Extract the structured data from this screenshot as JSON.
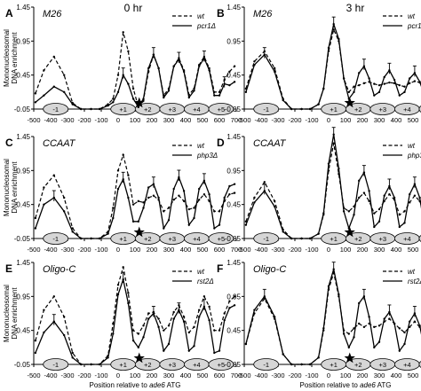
{
  "header": {
    "time_left": "0 hr",
    "time_right": "3 hr"
  },
  "shared": {
    "ylabel_line1": "Mononucleosomal",
    "ylabel_line2": "DNA enrichment",
    "xlabel_prefix": "Position relative to ",
    "xlabel_gene": "ade6",
    "xlabel_suffix": " ATG",
    "xticks": [
      -500,
      -400,
      -300,
      -200,
      -100,
      0,
      100,
      200,
      300,
      400,
      500,
      600,
      700
    ],
    "xtick_labels": [
      "-500",
      "-400",
      "-300",
      "-200",
      "-100",
      "0",
      "100",
      "200",
      "300",
      "400",
      "500",
      "600",
      "700"
    ],
    "yticks": [
      -0.05,
      0.45,
      0.95,
      1.45
    ],
    "ytick_labels": [
      "-0.05",
      "0.45",
      "0.95",
      "1.45"
    ],
    "xlim": [
      -500,
      700
    ],
    "ylim": [
      -0.05,
      1.45
    ],
    "nucleosomes": [
      {
        "label": "-1",
        "center": -370
      },
      {
        "label": "+1",
        "center": 30
      },
      {
        "label": "+2",
        "center": 175
      },
      {
        "label": "+3",
        "center": 320
      },
      {
        "label": "+4",
        "center": 465
      },
      {
        "label": "+5",
        "center": 610
      }
    ],
    "star_x": 125
  },
  "chart_data": [
    {
      "type": "line",
      "panel_letter": "A",
      "site": "M26",
      "legend": [
        "wt",
        "pcr1Δ"
      ],
      "series": [
        {
          "name": "wt",
          "style": "dashed",
          "x": [
            -490,
            -440,
            -380,
            -320,
            -270,
            -220,
            -160,
            -110,
            -60,
            -30,
            0,
            30,
            60,
            90,
            120,
            150,
            180,
            210,
            240,
            270,
            300,
            330,
            360,
            390,
            420,
            450,
            480,
            510,
            540,
            570,
            600,
            630,
            660,
            690
          ],
          "y": [
            0.18,
            0.52,
            0.72,
            0.45,
            0.04,
            -0.05,
            -0.05,
            -0.05,
            0.02,
            0.1,
            0.45,
            1.08,
            0.8,
            0.25,
            -0.02,
            0.08,
            0.5,
            0.75,
            0.55,
            0.15,
            0.25,
            0.58,
            0.7,
            0.52,
            0.16,
            0.25,
            0.6,
            0.72,
            0.55,
            0.2,
            0.2,
            0.38,
            0.5,
            0.58
          ]
        },
        {
          "name": "pcr1Δ",
          "style": "solid",
          "x": [
            -490,
            -440,
            -380,
            -320,
            -270,
            -220,
            -160,
            -110,
            -60,
            -30,
            0,
            30,
            60,
            90,
            120,
            150,
            180,
            210,
            240,
            270,
            300,
            330,
            360,
            390,
            420,
            450,
            480,
            510,
            540,
            570,
            600,
            630,
            660,
            690
          ],
          "y": [
            0.05,
            0.15,
            0.28,
            0.2,
            0.02,
            -0.05,
            -0.05,
            -0.05,
            0.0,
            0.05,
            0.2,
            0.45,
            0.32,
            0.1,
            -0.02,
            0.1,
            0.55,
            0.75,
            0.55,
            0.12,
            0.22,
            0.58,
            0.68,
            0.5,
            0.12,
            0.22,
            0.58,
            0.7,
            0.52,
            0.15,
            0.15,
            0.32,
            0.3,
            0.35
          ]
        }
      ]
    },
    {
      "type": "line",
      "panel_letter": "B",
      "site": "M26",
      "legend": [
        "wt",
        "pcr1Δ"
      ],
      "series": [
        {
          "name": "wt",
          "style": "dashed",
          "x": [
            -490,
            -440,
            -380,
            -320,
            -270,
            -220,
            -160,
            -110,
            -60,
            -30,
            0,
            30,
            60,
            90,
            120,
            150,
            180,
            210,
            240,
            270,
            300,
            330,
            360,
            390,
            420,
            450,
            480,
            510,
            540,
            570,
            600,
            630,
            660,
            690
          ],
          "y": [
            0.25,
            0.65,
            0.8,
            0.55,
            0.1,
            -0.05,
            -0.05,
            -0.05,
            0.02,
            0.25,
            0.8,
            1.12,
            0.95,
            0.4,
            0.2,
            0.28,
            0.3,
            0.33,
            0.35,
            0.32,
            0.3,
            0.32,
            0.34,
            0.33,
            0.3,
            0.28,
            0.33,
            0.36,
            0.34,
            0.3,
            0.28,
            0.3,
            0.26,
            0.25
          ]
        },
        {
          "name": "pcr1Δ",
          "style": "solid",
          "x": [
            -490,
            -440,
            -380,
            -320,
            -270,
            -220,
            -160,
            -110,
            -60,
            -30,
            0,
            30,
            60,
            90,
            120,
            150,
            180,
            210,
            240,
            270,
            300,
            330,
            360,
            390,
            420,
            450,
            480,
            510,
            540,
            570,
            600,
            630,
            660,
            690
          ],
          "y": [
            0.2,
            0.6,
            0.75,
            0.5,
            0.08,
            -0.05,
            -0.05,
            -0.05,
            0.02,
            0.25,
            0.85,
            1.2,
            0.98,
            0.4,
            0.1,
            0.2,
            0.48,
            0.58,
            0.4,
            0.15,
            0.2,
            0.42,
            0.52,
            0.38,
            0.15,
            0.2,
            0.4,
            0.48,
            0.35,
            0.15,
            0.15,
            0.32,
            0.4,
            0.5
          ]
        }
      ]
    },
    {
      "type": "line",
      "panel_letter": "C",
      "site": "CCAAT",
      "legend": [
        "wt",
        "php3Δ"
      ],
      "series": [
        {
          "name": "wt",
          "style": "dashed",
          "x": [
            -490,
            -440,
            -380,
            -320,
            -270,
            -220,
            -160,
            -110,
            -60,
            -30,
            0,
            30,
            60,
            90,
            120,
            150,
            180,
            210,
            240,
            270,
            300,
            330,
            360,
            390,
            420,
            450,
            480,
            510,
            540,
            570,
            600,
            630,
            660,
            690
          ],
          "y": [
            0.25,
            0.7,
            0.88,
            0.55,
            0.1,
            -0.05,
            -0.05,
            -0.05,
            0.05,
            0.4,
            0.95,
            1.18,
            0.88,
            0.45,
            0.5,
            0.48,
            0.55,
            0.58,
            0.52,
            0.35,
            0.4,
            0.52,
            0.58,
            0.5,
            0.38,
            0.4,
            0.52,
            0.6,
            0.5,
            0.35,
            0.35,
            0.5,
            0.6,
            0.62
          ]
        },
        {
          "name": "php3Δ",
          "style": "solid",
          "x": [
            -490,
            -440,
            -380,
            -320,
            -270,
            -220,
            -160,
            -110,
            -60,
            -30,
            0,
            30,
            60,
            90,
            120,
            150,
            180,
            210,
            240,
            270,
            300,
            330,
            360,
            390,
            420,
            450,
            480,
            510,
            540,
            570,
            600,
            630,
            660,
            690
          ],
          "y": [
            0.1,
            0.45,
            0.55,
            0.35,
            0.05,
            -0.05,
            -0.05,
            -0.05,
            0.02,
            0.25,
            0.68,
            0.82,
            0.55,
            0.2,
            0.2,
            0.4,
            0.7,
            0.75,
            0.55,
            0.1,
            0.22,
            0.68,
            0.85,
            0.65,
            0.15,
            0.25,
            0.68,
            0.8,
            0.6,
            0.1,
            0.15,
            0.55,
            0.72,
            0.75
          ]
        }
      ]
    },
    {
      "type": "line",
      "panel_letter": "D",
      "site": "CCAAT",
      "legend": [
        "wt",
        "php3Δ"
      ],
      "series": [
        {
          "name": "wt",
          "style": "dashed",
          "x": [
            -490,
            -440,
            -380,
            -320,
            -270,
            -220,
            -160,
            -110,
            -60,
            -30,
            0,
            30,
            60,
            90,
            120,
            150,
            180,
            210,
            240,
            270,
            300,
            330,
            360,
            390,
            420,
            450,
            480,
            510,
            540,
            570,
            600,
            630,
            660,
            690
          ],
          "y": [
            0.2,
            0.55,
            0.78,
            0.5,
            0.08,
            -0.05,
            -0.05,
            -0.05,
            0.02,
            0.3,
            0.95,
            1.35,
            0.9,
            0.4,
            0.35,
            0.42,
            0.55,
            0.62,
            0.5,
            0.32,
            0.38,
            0.5,
            0.6,
            0.52,
            0.3,
            0.35,
            0.48,
            0.58,
            0.5,
            0.3,
            0.3,
            0.42,
            0.52,
            0.55
          ]
        },
        {
          "name": "php3Δ",
          "style": "solid",
          "x": [
            -490,
            -440,
            -380,
            -320,
            -270,
            -220,
            -160,
            -110,
            -60,
            -30,
            0,
            30,
            60,
            90,
            120,
            150,
            180,
            210,
            240,
            270,
            300,
            330,
            360,
            390,
            420,
            450,
            480,
            510,
            540,
            570,
            600,
            630,
            660,
            690
          ],
          "y": [
            0.15,
            0.48,
            0.65,
            0.42,
            0.05,
            -0.05,
            -0.05,
            -0.05,
            0.02,
            0.32,
            1.05,
            1.48,
            0.98,
            0.35,
            0.1,
            0.3,
            0.8,
            0.92,
            0.65,
            0.12,
            0.2,
            0.58,
            0.72,
            0.55,
            0.12,
            0.18,
            0.6,
            0.75,
            0.55,
            0.1,
            0.12,
            0.55,
            0.72,
            0.75
          ]
        }
      ]
    },
    {
      "type": "line",
      "panel_letter": "E",
      "site": "Oligo-C",
      "legend": [
        "wt",
        "rst2Δ"
      ],
      "series": [
        {
          "name": "wt",
          "style": "dashed",
          "x": [
            -490,
            -440,
            -380,
            -320,
            -270,
            -220,
            -160,
            -110,
            -60,
            -30,
            0,
            30,
            60,
            90,
            120,
            150,
            180,
            210,
            240,
            270,
            300,
            330,
            360,
            390,
            420,
            450,
            480,
            510,
            540,
            570,
            600,
            630,
            660,
            690
          ],
          "y": [
            0.3,
            0.75,
            0.95,
            0.65,
            0.12,
            -0.05,
            -0.05,
            -0.05,
            0.08,
            0.55,
            1.12,
            1.38,
            1.0,
            0.45,
            0.4,
            0.52,
            0.7,
            0.72,
            0.62,
            0.45,
            0.52,
            0.72,
            0.82,
            0.65,
            0.42,
            0.5,
            0.75,
            0.95,
            0.8,
            0.45,
            0.45,
            0.7,
            0.88,
            0.95
          ]
        },
        {
          "name": "rst2Δ",
          "style": "solid",
          "x": [
            -490,
            -440,
            -380,
            -320,
            -270,
            -220,
            -160,
            -110,
            -60,
            -30,
            0,
            30,
            60,
            90,
            120,
            150,
            180,
            210,
            240,
            270,
            300,
            330,
            360,
            390,
            420,
            450,
            480,
            510,
            540,
            570,
            600,
            630,
            660,
            690
          ],
          "y": [
            0.12,
            0.42,
            0.58,
            0.38,
            0.05,
            -0.05,
            -0.05,
            -0.05,
            0.05,
            0.4,
            0.98,
            1.2,
            0.85,
            0.3,
            0.2,
            0.35,
            0.62,
            0.7,
            0.5,
            0.15,
            0.25,
            0.62,
            0.75,
            0.58,
            0.15,
            0.22,
            0.65,
            0.8,
            0.6,
            0.12,
            0.15,
            0.6,
            0.78,
            0.82
          ]
        }
      ]
    },
    {
      "type": "line",
      "panel_letter": "F",
      "site": "Oligo-C",
      "legend": [
        "wt",
        "rst2Δ"
      ],
      "series": [
        {
          "name": "wt",
          "style": "dashed",
          "x": [
            -490,
            -440,
            -380,
            -320,
            -270,
            -220,
            -160,
            -110,
            -60,
            -30,
            0,
            30,
            60,
            90,
            120,
            150,
            180,
            210,
            240,
            270,
            300,
            330,
            360,
            390,
            420,
            450,
            480,
            510,
            540,
            570,
            600,
            630,
            660,
            690
          ],
          "y": [
            0.25,
            0.7,
            0.92,
            0.62,
            0.1,
            -0.05,
            -0.05,
            -0.05,
            0.05,
            0.45,
            1.05,
            1.3,
            0.95,
            0.45,
            0.4,
            0.48,
            0.55,
            0.5,
            0.55,
            0.5,
            0.52,
            0.58,
            0.62,
            0.55,
            0.48,
            0.42,
            0.5,
            0.58,
            0.5,
            0.4,
            0.38,
            0.42,
            0.5,
            0.55
          ]
        },
        {
          "name": "rst2Δ",
          "style": "solid",
          "x": [
            -490,
            -440,
            -380,
            -320,
            -270,
            -220,
            -160,
            -110,
            -60,
            -30,
            0,
            30,
            60,
            90,
            120,
            150,
            180,
            210,
            240,
            270,
            300,
            330,
            360,
            390,
            420,
            450,
            480,
            510,
            540,
            570,
            600,
            630,
            660,
            690
          ],
          "y": [
            0.25,
            0.75,
            0.95,
            0.65,
            0.1,
            -0.05,
            -0.05,
            -0.05,
            0.05,
            0.48,
            1.1,
            1.35,
            0.98,
            0.4,
            0.2,
            0.35,
            0.85,
            0.95,
            0.65,
            0.2,
            0.28,
            0.62,
            0.72,
            0.55,
            0.15,
            0.25,
            0.58,
            0.7,
            0.52,
            0.15,
            0.18,
            0.4,
            0.55,
            0.6
          ]
        }
      ]
    }
  ]
}
